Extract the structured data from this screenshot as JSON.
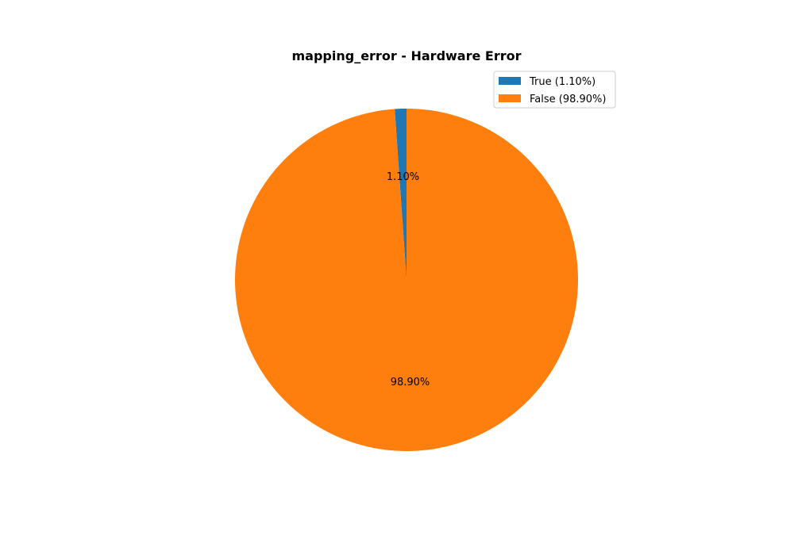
{
  "chart_data": {
    "type": "pie",
    "title": "mapping_error - Hardware Error",
    "categories": [
      "True",
      "False"
    ],
    "values": [
      1.1,
      98.9
    ],
    "slice_labels": [
      "1.10%",
      "98.90%"
    ],
    "legend": {
      "placement": "top-right",
      "entries": [
        "True (1.10%)",
        "False (98.90%)"
      ]
    },
    "colors": [
      "#1f77b4",
      "#ff7f0e"
    ],
    "start_angle_deg": 90,
    "direction": "counterclockwise"
  }
}
